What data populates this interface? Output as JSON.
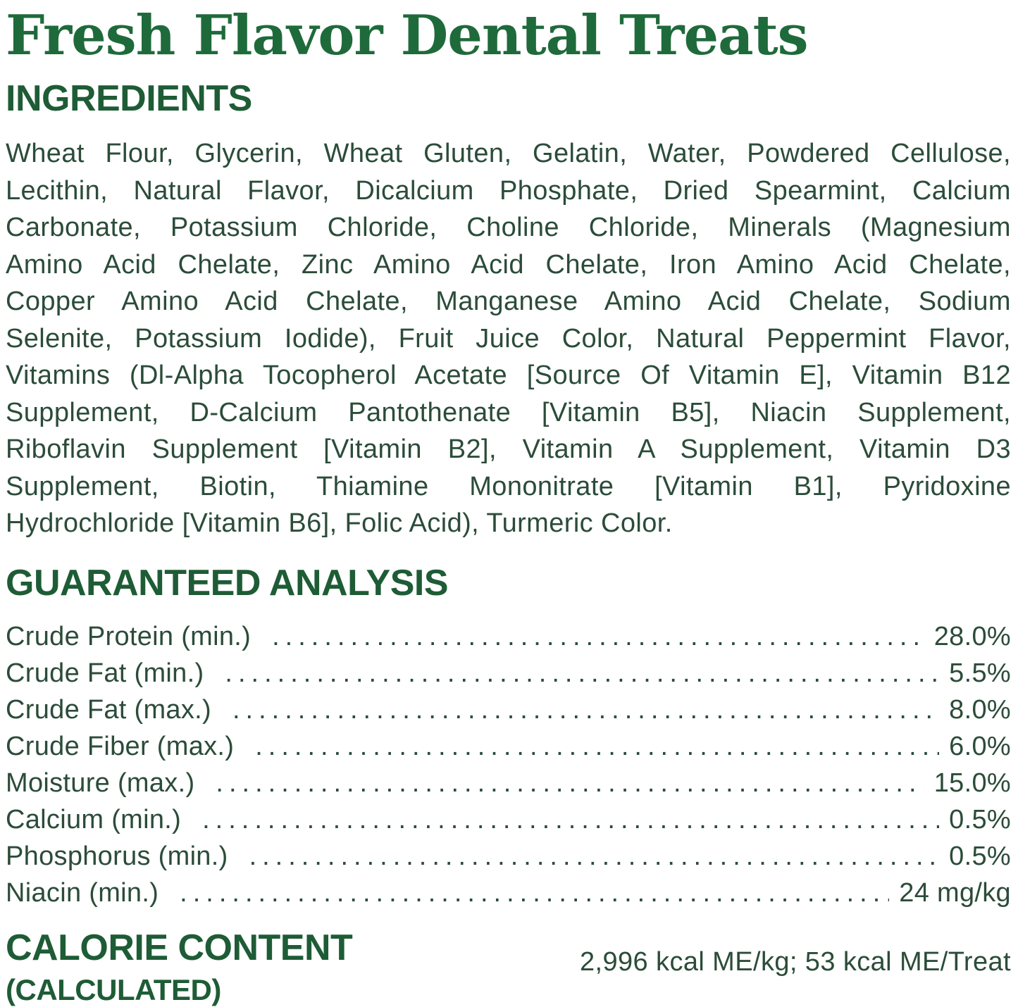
{
  "colors": {
    "title": "#1f6a3b",
    "heading": "#1e5c36",
    "body": "#2b4c39",
    "background": "#ffffff"
  },
  "title": "Fresh Flavor Dental Treats",
  "ingredients": {
    "heading": "INGREDIENTS",
    "lines": [
      "Wheat Flour, Glycerin, Wheat Gluten, Gelatin, Water, Powdered Cellulose,",
      "Lecithin, Natural Flavor, Dicalcium Phosphate, Dried Spearmint, Calcium",
      "Carbonate, Potassium Chloride, Choline Chloride, Minerals (Magnesium",
      "Amino Acid Chelate, Zinc Amino Acid Chelate, Iron Amino Acid Chelate,",
      "Copper Amino Acid Chelate, Manganese Amino Acid Chelate, Sodium",
      "Selenite, Potassium Iodide), Fruit Juice Color, Natural Peppermint Flavor,",
      "Vitamins (Dl-Alpha Tocopherol Acetate [Source Of Vitamin E], Vitamin B12",
      "Supplement, D-Calcium Pantothenate [Vitamin B5], Niacin Supplement,",
      "Riboflavin Supplement [Vitamin B2], Vitamin A Supplement, Vitamin D3",
      "Supplement, Biotin, Thiamine Mononitrate [Vitamin B1], Pyridoxine",
      "Hydrochloride [Vitamin B6], Folic Acid), Turmeric Color."
    ]
  },
  "guaranteed_analysis": {
    "heading": "GUARANTEED ANALYSIS",
    "rows": [
      {
        "label": "Crude Protein (min.)",
        "value": "28.0%"
      },
      {
        "label": "Crude Fat (min.)",
        "value": "5.5%"
      },
      {
        "label": "Crude Fat (max.)",
        "value": "8.0%"
      },
      {
        "label": "Crude Fiber (max.)",
        "value": "6.0%"
      },
      {
        "label": "Moisture (max.)",
        "value": "15.0%"
      },
      {
        "label": "Calcium (min.)",
        "value": "0.5%"
      },
      {
        "label": "Phosphorus (min.)",
        "value": "0.5%"
      },
      {
        "label": "Niacin (min.)",
        "value": "24 mg/kg"
      }
    ]
  },
  "calorie_content": {
    "heading": "CALORIE CONTENT",
    "subheading": "(CALCULATED)",
    "value": "2,996 kcal ME/kg; 53 kcal ME/Treat"
  }
}
